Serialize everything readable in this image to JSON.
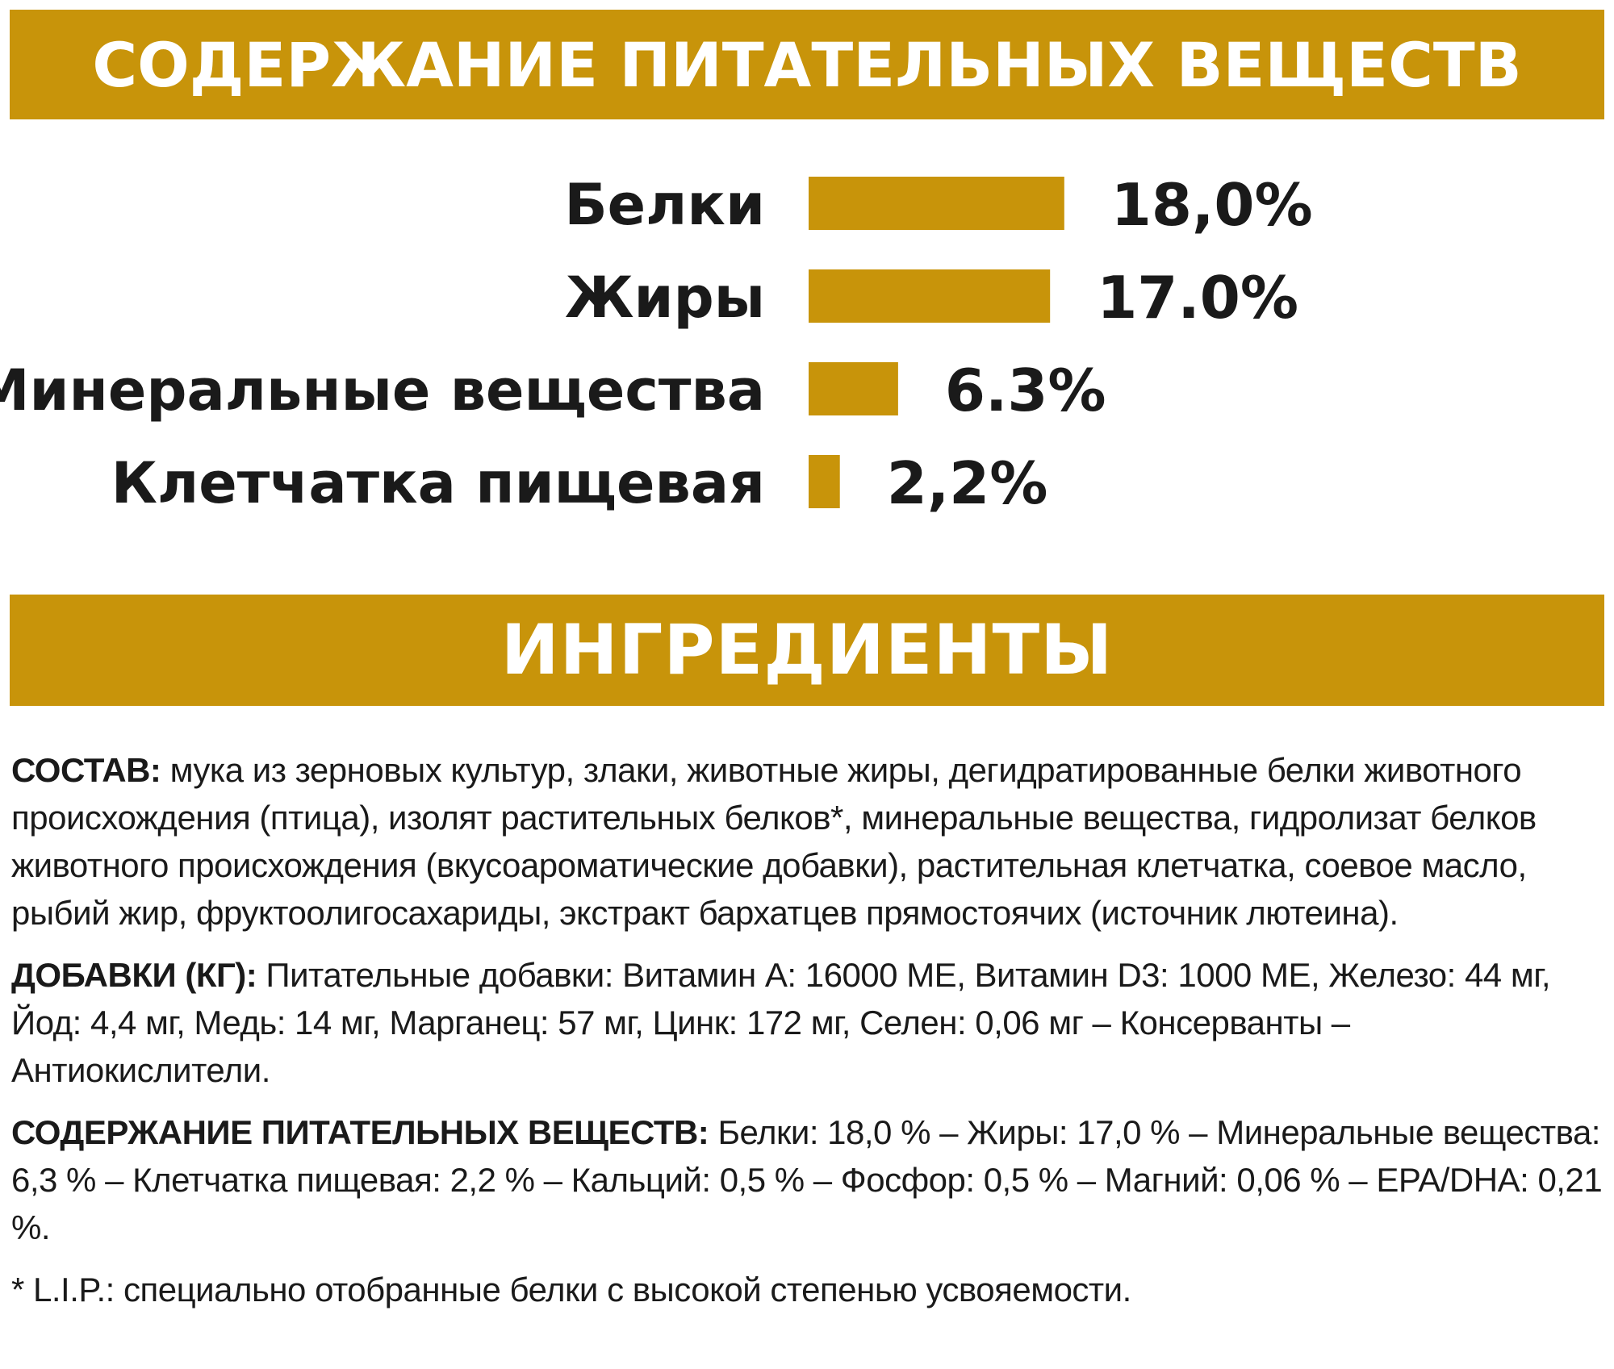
{
  "headers": {
    "nutrients": "СОДЕРЖАНИЕ ПИТАТЕЛЬНЫХ ВЕЩЕСТВ",
    "ingredients": "ИНГРЕДИЕНТЫ"
  },
  "chart_data": {
    "type": "bar",
    "orientation": "horizontal",
    "categories": [
      "Белки",
      "Жиры",
      "Минеральные вещества",
      "Клетчатка пищевая"
    ],
    "values": [
      18.0,
      17.0,
      6.3,
      2.2
    ],
    "value_labels": [
      "18,0%",
      "17.0%",
      "6.3%",
      "2,2%"
    ],
    "title": "",
    "xlabel": "",
    "ylabel": "",
    "bar_color": "#c8940a",
    "grid": false
  },
  "composition": {
    "sostav_label": "СОСТАВ:",
    "sostav_text": " мука из зерновых культур, злаки, животные жиры, дегидратированные белки животного происхождения (птица), изолят растительных белков*, минеральные вещества, гидролизат белков животного происхождения (вкусоароматические добавки), растительная клетчатка, соевое масло, рыбий жир, фруктоолигосахариды, экстракт бархатцев прямостоячих (источник лютеина).",
    "dobavki_label": "ДОБАВКИ (КГ):",
    "dobavki_text": " Питательные добавки: Витамин А: 16000 МЕ, Витамин D3: 1000 МЕ, Железо: 44 мг, Йод: 4,4 мг, Медь: 14 мг, Марганец: 57 мг, Цинк: 172 мг, Селен: 0,06 мг – Консерванты – Антиокислители.",
    "nutrients_label": "СОДЕРЖАНИЕ ПИТАТЕЛЬНЫХ ВЕЩЕСТВ:",
    "nutrients_text": " Белки: 18,0 % – Жиры: 17,0 % – Минеральные вещества: 6,3 % – Клетчатка пищевая: 2,2 % – Кальций: 0,5 % – Фосфор: 0,5 % – Магний: 0,06 % – EPA/DHA: 0,21 %.",
    "footnote": "* L.I.P.: специально отобранные белки с высокой степенью усвояемости."
  }
}
